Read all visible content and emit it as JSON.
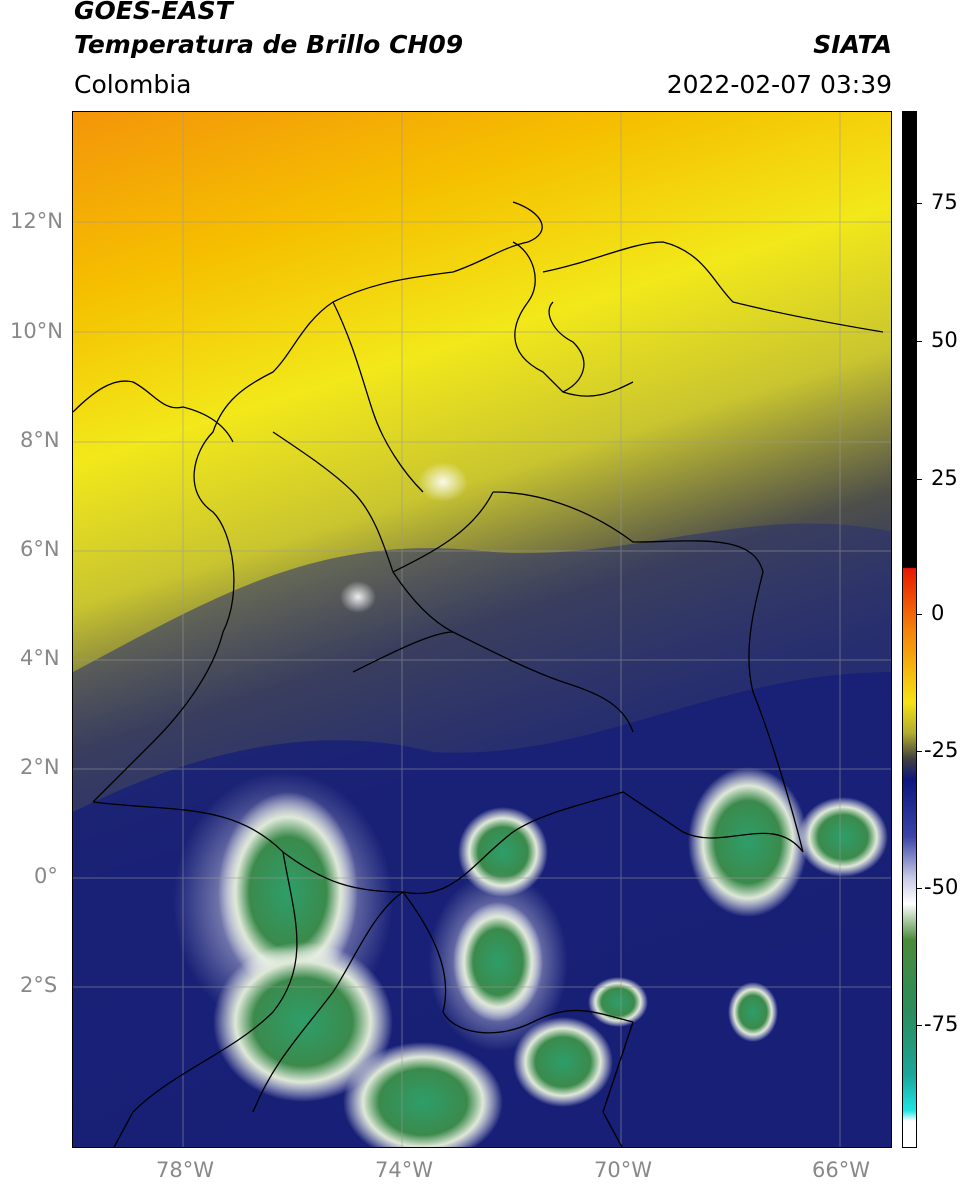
{
  "header": {
    "satellite": "GOES-EAST",
    "product": "Temperatura de Brillo CH09",
    "region": "Colombia",
    "agency": "SIATA",
    "datetime": "2022-02-07 03:39"
  },
  "map": {
    "lat_labels": [
      "12°N",
      "10°N",
      "8°N",
      "6°N",
      "4°N",
      "2°N",
      "0°",
      "2°S"
    ],
    "lon_labels": [
      "78°W",
      "74°W",
      "70°W",
      "66°W"
    ],
    "lat_values": [
      12,
      10,
      8,
      6,
      4,
      2,
      0,
      -2
    ],
    "lon_values": [
      -78,
      -74,
      -70,
      -66
    ],
    "extent": {
      "lon_min": -80,
      "lon_max": -65,
      "lat_min": -4.9,
      "lat_max": 14
    },
    "palette": {
      "warm_orange": "#f5a000",
      "warm_yellow": "#f2e20a",
      "mid_olive": "#6f6f35",
      "cold_navy": "#1a1f7a",
      "very_cold_white": "#f2f2f2",
      "deep_cold_green": "#3a9a5a"
    }
  },
  "colorbar": {
    "labels": [
      "75",
      "50",
      "25",
      "0",
      "-25",
      "-50",
      "-75"
    ],
    "values": [
      75,
      50,
      25,
      0,
      -25,
      -50,
      -75
    ],
    "range": [
      -93,
      90
    ]
  }
}
